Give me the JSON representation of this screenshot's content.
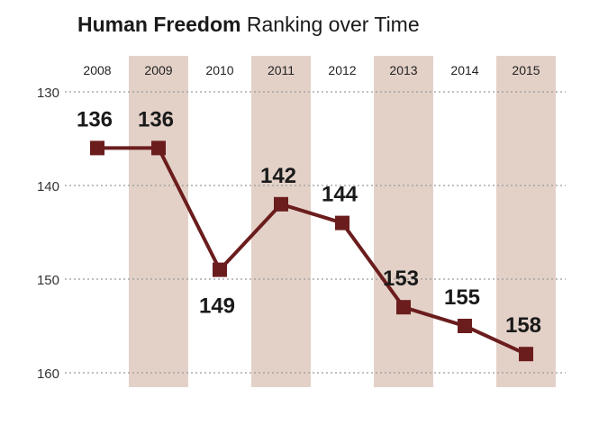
{
  "chart_data": {
    "type": "line",
    "title_bold": "Human Freedom",
    "title_rest": "Ranking over Time",
    "xlabel": "",
    "ylabel": "",
    "x": [
      "2008",
      "2009",
      "2010",
      "2011",
      "2012",
      "2013",
      "2014",
      "2015"
    ],
    "series": [
      {
        "values": [
          136,
          136,
          149,
          142,
          144,
          153,
          155,
          158
        ]
      }
    ],
    "data_labels": [
      "136",
      "136",
      "149",
      "142",
      "144",
      "153",
      "155",
      "158"
    ],
    "y_ticks": [
      "130",
      "140",
      "150",
      "160"
    ],
    "y_tick_values": [
      130,
      140,
      150,
      160
    ],
    "ylim": [
      130,
      160
    ],
    "y_inverted": true,
    "grid": "dotted-horizontal",
    "shaded_years": [
      "2009",
      "2011",
      "2013",
      "2015"
    ],
    "colors": {
      "line": "#6b1d1d",
      "band": "#e3d1c8",
      "grid": "#9a9a9a",
      "text": "#1a1a1a"
    }
  }
}
